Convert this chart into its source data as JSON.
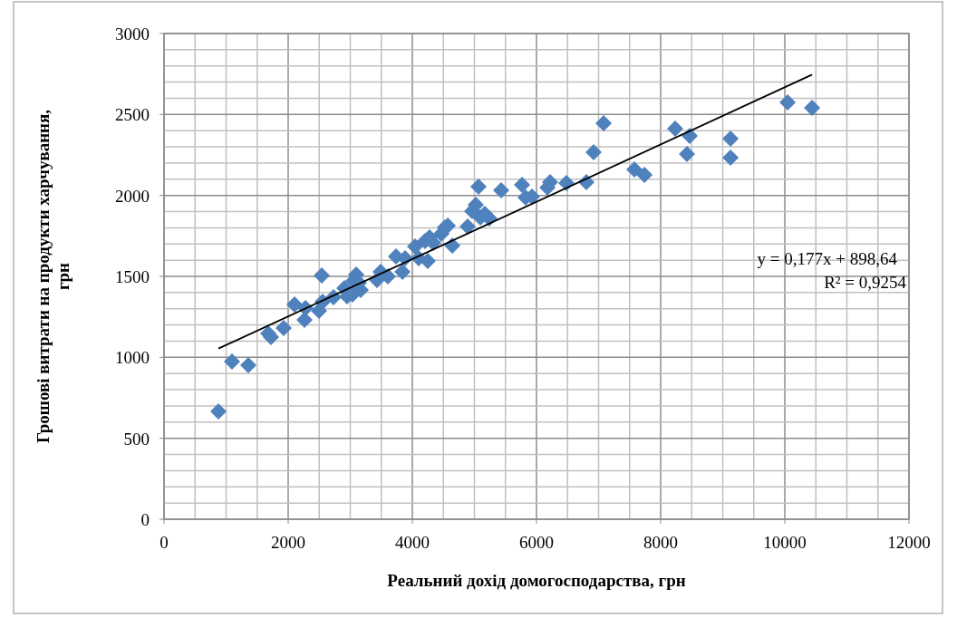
{
  "chart_data": {
    "type": "scatter",
    "xlabel": "Реальний дохід домогосподарства, грн",
    "ylabel": "Грошові витрати на продукти харчування, грн",
    "xlim": [
      0,
      12000
    ],
    "xticks": [
      0,
      2000,
      4000,
      6000,
      8000,
      10000,
      12000
    ],
    "ylim": [
      0,
      3000
    ],
    "yticks": [
      0,
      500,
      1000,
      1500,
      2000,
      2500,
      3000
    ],
    "grid": true,
    "marker": "diamond",
    "series": [
      {
        "color": "#4f81bd",
        "x": [
          876,
          1095,
          1358,
          1679,
          1723,
          1927,
          2102,
          2263,
          2278,
          2540,
          2496,
          2555,
          2730,
          2905,
          2949,
          3051,
          3095,
          3168,
          3036,
          3139,
          3431,
          3489,
          3606,
          3737,
          3840,
          3883,
          4044,
          4102,
          4204,
          4277,
          4248,
          4336,
          4467,
          4526,
          4570,
          4643,
          4891,
          4964,
          5022,
          5066,
          5095,
          5168,
          5241,
          5431,
          5767,
          5825,
          5927,
          6176,
          6219,
          6482,
          6803,
          6920,
          7081,
          7577,
          7738,
          8234,
          8424,
          8468,
          9125,
          9125,
          10045,
          10439
        ],
        "values": [
          666,
          974,
          951,
          1147,
          1125,
          1181,
          1327,
          1231,
          1304,
          1506,
          1287,
          1343,
          1371,
          1427,
          1377,
          1472,
          1511,
          1416,
          1388,
          1461,
          1478,
          1528,
          1500,
          1623,
          1528,
          1612,
          1685,
          1612,
          1718,
          1741,
          1595,
          1707,
          1763,
          1802,
          1813,
          1690,
          1808,
          1903,
          1942,
          2054,
          1864,
          1886,
          1858,
          2032,
          2065,
          1987,
          1993,
          2049,
          2082,
          2076,
          2082,
          2267,
          2446,
          2160,
          2127,
          2412,
          2256,
          2368,
          2351,
          2233,
          2575,
          2541
        ]
      },
      {
        "type": "line",
        "marker": "none",
        "color": "#000000",
        "x": [
          876,
          10439
        ],
        "values": [
          1054,
          2746
        ]
      }
    ],
    "annotations": [
      "y = 0,177x + 898,64",
      "R² = 0,9254"
    ]
  }
}
